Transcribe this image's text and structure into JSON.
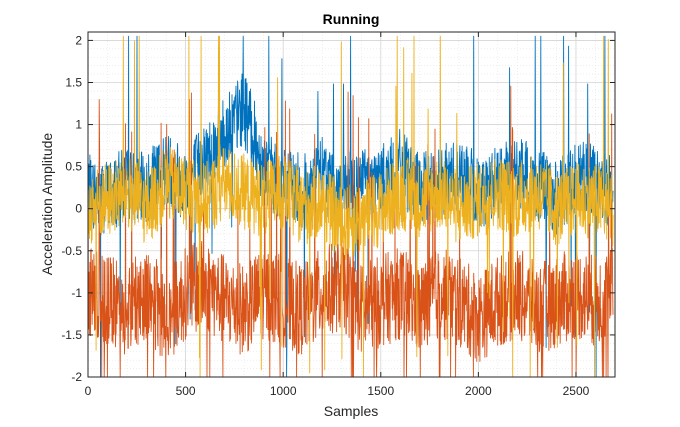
{
  "chart_data": {
    "type": "line",
    "title": "Running",
    "xlabel": "Samples",
    "ylabel": "Acceleration Amplitude",
    "xlim": [
      0,
      2700
    ],
    "ylim": [
      -2,
      2.1
    ],
    "xticks": [
      0,
      500,
      1000,
      1500,
      2000,
      2500
    ],
    "yticks": [
      -2,
      -1.5,
      -1,
      -0.5,
      0,
      0.5,
      1,
      1.5,
      2
    ],
    "xtick_labels": [
      "0",
      "500",
      "1000",
      "1500",
      "2000",
      "2500"
    ],
    "ytick_labels": [
      "-2",
      "-1.5",
      "-1",
      "-0.5",
      "0",
      "0.5",
      "1",
      "1.5",
      "2"
    ],
    "grid": true,
    "minor_grid": true,
    "legend": "none",
    "series": [
      {
        "color": "#0072BD",
        "x": [
          0,
          100,
          200,
          300,
          400,
          500,
          600,
          700,
          800,
          900,
          1000,
          1100,
          1200,
          1300,
          1400,
          1500,
          1600,
          1700,
          1800,
          1900,
          2000,
          2100,
          2200,
          2300,
          2400,
          2500,
          2600,
          2690
        ],
        "values": [
          0.2,
          0.15,
          0.3,
          0.2,
          0.5,
          0.3,
          0.6,
          0.9,
          1.2,
          0.5,
          0.3,
          0.2,
          0.4,
          0.2,
          0.3,
          0.3,
          0.5,
          0.2,
          0.3,
          0.4,
          0.2,
          0.3,
          0.4,
          0.3,
          0.1,
          0.4,
          0.3,
          0.2
        ]
      },
      {
        "color": "#D95319",
        "x": [
          0,
          100,
          200,
          300,
          400,
          500,
          600,
          700,
          800,
          900,
          1000,
          1100,
          1200,
          1300,
          1400,
          1500,
          1600,
          1700,
          1800,
          1900,
          2000,
          2100,
          2200,
          2300,
          2400,
          2500,
          2600,
          2690
        ],
        "values": [
          -1.0,
          -1.1,
          -1.2,
          -1.0,
          -1.3,
          -1.0,
          -0.9,
          -1.1,
          -1.2,
          -1.0,
          -1.1,
          -1.2,
          -1.0,
          -0.9,
          -1.2,
          -1.1,
          -1.0,
          -1.2,
          -1.0,
          -1.1,
          -1.3,
          -1.1,
          -1.0,
          -1.2,
          -1.1,
          -1.0,
          -1.1,
          -1.0
        ]
      },
      {
        "color": "#EDB120",
        "x": [
          0,
          100,
          200,
          300,
          400,
          500,
          600,
          700,
          800,
          900,
          1000,
          1100,
          1200,
          1300,
          1400,
          1500,
          1600,
          1700,
          1800,
          1900,
          2000,
          2100,
          2200,
          2300,
          2400,
          2500,
          2600,
          2690
        ],
        "values": [
          0.0,
          0.1,
          0.2,
          0.0,
          0.3,
          0.2,
          0.1,
          0.3,
          0.2,
          0.1,
          0.2,
          0.0,
          0.1,
          -0.2,
          -0.1,
          0.0,
          0.2,
          0.1,
          0.2,
          0.0,
          0.1,
          0.2,
          0.1,
          0.2,
          0.0,
          0.1,
          0.1,
          0.0
        ]
      }
    ]
  }
}
